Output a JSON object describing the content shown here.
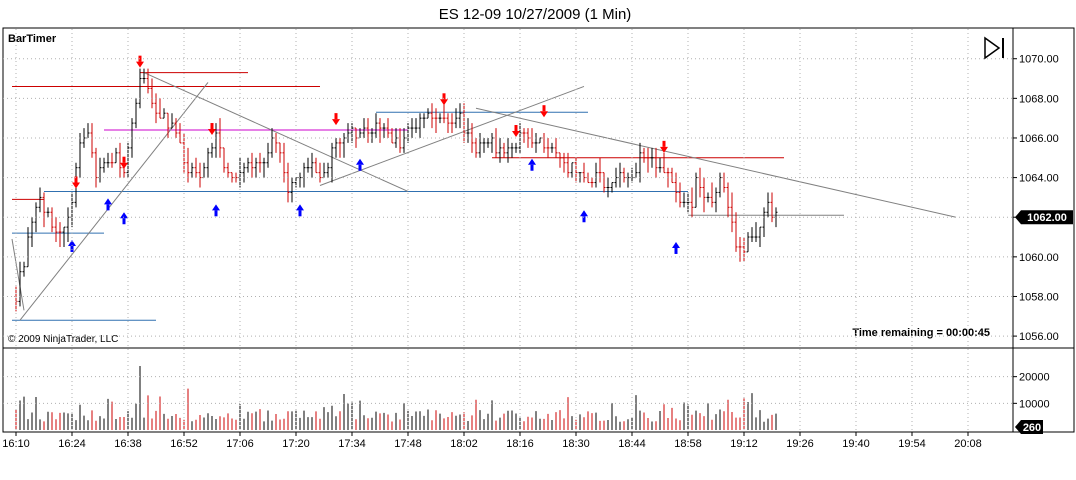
{
  "chart_title": "ES 12-09  10/27/2009 (1 Min)",
  "indicator_label": "BarTimer",
  "copyright": "© 2009 NinjaTrader, LLC",
  "time_remaining": "Time remaining = 00:00:45",
  "colors": {
    "up_bar": "#000000",
    "down_bar": "#cc0000",
    "up_arrow": "#0000ff",
    "down_arrow": "#ff0000",
    "grid": "#b0b0b0",
    "price_tag": "#000000"
  },
  "chart_data": [
    {
      "type": "candlestick",
      "title": "ES 12-09  10/27/2009 (1 Min)",
      "ylim": [
        1055.5,
        1071.5
      ],
      "y_ticks": [
        1056,
        1058,
        1060,
        1062,
        1064,
        1066,
        1068,
        1070
      ],
      "y_tick_labels": [
        "1056.00",
        "1058.00",
        "1060.00",
        "1062.00",
        "1064.00",
        "1066.00",
        "1068.00",
        "1070.00"
      ],
      "x_tick_labels": [
        "16:10",
        "16:24",
        "16:38",
        "16:52",
        "17:06",
        "17:20",
        "17:34",
        "17:48",
        "18:02",
        "18:16",
        "18:30",
        "18:44",
        "18:58",
        "19:12",
        "19:26",
        "19:40",
        "19:54",
        "20:08"
      ],
      "last_price": "1062.00",
      "grid": true,
      "anchors": [
        {
          "t": "16:10",
          "p": 1058.0
        },
        {
          "t": "16:12",
          "p": 1059.8
        },
        {
          "t": "16:14",
          "p": 1061.6
        },
        {
          "t": "16:16",
          "p": 1062.8
        },
        {
          "t": "16:18",
          "p": 1062.0
        },
        {
          "t": "16:20",
          "p": 1061.4
        },
        {
          "t": "16:22",
          "p": 1061.2
        },
        {
          "t": "16:24",
          "p": 1063.0
        },
        {
          "t": "16:26",
          "p": 1065.5
        },
        {
          "t": "16:28",
          "p": 1066.0
        },
        {
          "t": "16:30",
          "p": 1064.4
        },
        {
          "t": "16:33",
          "p": 1064.8
        },
        {
          "t": "16:35",
          "p": 1065.2
        },
        {
          "t": "16:37",
          "p": 1064.0
        },
        {
          "t": "16:39",
          "p": 1066.6
        },
        {
          "t": "16:41",
          "p": 1069.2
        },
        {
          "t": "16:43",
          "p": 1068.5
        },
        {
          "t": "16:45",
          "p": 1067.5
        },
        {
          "t": "16:47",
          "p": 1067.0
        },
        {
          "t": "16:50",
          "p": 1066.2
        },
        {
          "t": "16:53",
          "p": 1064.2
        },
        {
          "t": "16:56",
          "p": 1064.4
        },
        {
          "t": "16:58",
          "p": 1065.0
        },
        {
          "t": "17:00",
          "p": 1066.3
        },
        {
          "t": "17:03",
          "p": 1064.0
        },
        {
          "t": "17:06",
          "p": 1064.3
        },
        {
          "t": "17:09",
          "p": 1064.6
        },
        {
          "t": "17:12",
          "p": 1064.8
        },
        {
          "t": "17:14",
          "p": 1066.2
        },
        {
          "t": "17:16",
          "p": 1065.2
        },
        {
          "t": "17:18",
          "p": 1063.6
        },
        {
          "t": "17:21",
          "p": 1063.8
        },
        {
          "t": "17:23",
          "p": 1064.8
        },
        {
          "t": "17:26",
          "p": 1063.8
        },
        {
          "t": "17:28",
          "p": 1064.5
        },
        {
          "t": "17:30",
          "p": 1066.0
        },
        {
          "t": "17:32",
          "p": 1065.8
        },
        {
          "t": "17:34",
          "p": 1066.2
        },
        {
          "t": "17:36",
          "p": 1066.0
        },
        {
          "t": "17:38",
          "p": 1066.5
        },
        {
          "t": "17:40",
          "p": 1066.6
        },
        {
          "t": "17:42",
          "p": 1066.4
        },
        {
          "t": "17:44",
          "p": 1066.0
        },
        {
          "t": "17:46",
          "p": 1065.8
        },
        {
          "t": "17:48",
          "p": 1066.2
        },
        {
          "t": "17:50",
          "p": 1066.5
        },
        {
          "t": "17:52",
          "p": 1067.2
        },
        {
          "t": "17:55",
          "p": 1067.0
        },
        {
          "t": "17:58",
          "p": 1066.8
        },
        {
          "t": "18:01",
          "p": 1067.0
        },
        {
          "t": "18:03",
          "p": 1066.2
        },
        {
          "t": "18:05",
          "p": 1065.4
        },
        {
          "t": "18:07",
          "p": 1065.6
        },
        {
          "t": "18:09",
          "p": 1065.8
        },
        {
          "t": "18:11",
          "p": 1065.2
        },
        {
          "t": "18:13",
          "p": 1065.4
        },
        {
          "t": "18:15",
          "p": 1065.8
        },
        {
          "t": "18:17",
          "p": 1066.4
        },
        {
          "t": "18:19",
          "p": 1065.9
        },
        {
          "t": "18:21",
          "p": 1065.7
        },
        {
          "t": "18:23",
          "p": 1065.3
        },
        {
          "t": "18:25",
          "p": 1065.2
        },
        {
          "t": "18:27",
          "p": 1064.6
        },
        {
          "t": "18:29",
          "p": 1064.6
        },
        {
          "t": "18:31",
          "p": 1064.0
        },
        {
          "t": "18:33",
          "p": 1063.6
        },
        {
          "t": "18:35",
          "p": 1064.2
        },
        {
          "t": "18:37",
          "p": 1063.6
        },
        {
          "t": "18:39",
          "p": 1063.8
        },
        {
          "t": "18:41",
          "p": 1064.1
        },
        {
          "t": "18:43",
          "p": 1064.2
        },
        {
          "t": "18:45",
          "p": 1064.6
        },
        {
          "t": "18:47",
          "p": 1065.2
        },
        {
          "t": "18:49",
          "p": 1064.9
        },
        {
          "t": "18:51",
          "p": 1064.6
        },
        {
          "t": "18:53",
          "p": 1064.1
        },
        {
          "t": "18:55",
          "p": 1063.6
        },
        {
          "t": "18:57",
          "p": 1062.6
        },
        {
          "t": "18:59",
          "p": 1062.8
        },
        {
          "t": "19:00",
          "p": 1064.3
        },
        {
          "t": "19:02",
          "p": 1063.0
        },
        {
          "t": "19:04",
          "p": 1062.7
        },
        {
          "t": "19:06",
          "p": 1063.9
        },
        {
          "t": "19:08",
          "p": 1062.6
        },
        {
          "t": "19:10",
          "p": 1060.8
        },
        {
          "t": "19:12",
          "p": 1060.6
        },
        {
          "t": "19:14",
          "p": 1061.1
        },
        {
          "t": "19:16",
          "p": 1061.6
        },
        {
          "t": "19:18",
          "p": 1062.6
        },
        {
          "t": "19:20",
          "p": 1062.1
        }
      ],
      "horizontal_levels": [
        {
          "price": 1069.3,
          "from": "16:41",
          "to": "17:08",
          "color": "#cc0000"
        },
        {
          "price": 1068.6,
          "from": "16:09",
          "to": "17:26",
          "color": "#cc0000"
        },
        {
          "price": 1066.4,
          "from": "16:32",
          "to": "17:48",
          "color": "#cc00cc"
        },
        {
          "price": 1067.3,
          "from": "17:40",
          "to": "18:33",
          "color": "#3070b0"
        },
        {
          "price": 1065.0,
          "from": "18:09",
          "to": "19:22",
          "color": "#cc0000"
        },
        {
          "price": 1063.3,
          "from": "16:17",
          "to": "18:58",
          "color": "#3070b0"
        },
        {
          "price": 1062.9,
          "from": "16:09",
          "to": "16:17",
          "color": "#cc0000"
        },
        {
          "price": 1061.2,
          "from": "16:09",
          "to": "16:32",
          "color": "#3070b0"
        },
        {
          "price": 1062.1,
          "from": "18:58",
          "to": "19:37",
          "color": "#808080"
        },
        {
          "price": 1056.8,
          "from": "16:09",
          "to": "16:45",
          "color": "#3070b0"
        }
      ],
      "trendlines": [
        {
          "from": {
            "t": "16:11",
            "p": 1056.8
          },
          "to": {
            "t": "16:58",
            "p": 1068.8
          },
          "color": "#808080"
        },
        {
          "from": {
            "t": "16:42",
            "p": 1069.3
          },
          "to": {
            "t": "17:48",
            "p": 1063.3
          },
          "color": "#808080"
        },
        {
          "from": {
            "t": "17:26",
            "p": 1063.6
          },
          "to": {
            "t": "18:32",
            "p": 1068.6
          },
          "color": "#808080"
        },
        {
          "from": {
            "t": "18:05",
            "p": 1067.5
          },
          "to": {
            "t": "20:05",
            "p": 1062.0
          },
          "color": "#808080"
        },
        {
          "from": {
            "t": "16:09",
            "p": 1060.9
          },
          "to": {
            "t": "16:12",
            "p": 1057.3
          },
          "color": "#808080"
        }
      ],
      "signals": [
        {
          "t": "16:25",
          "p": 1063.6,
          "dir": "down"
        },
        {
          "t": "16:37",
          "p": 1064.6,
          "dir": "down"
        },
        {
          "t": "16:41",
          "p": 1069.7,
          "dir": "down"
        },
        {
          "t": "16:59",
          "p": 1066.3,
          "dir": "down"
        },
        {
          "t": "17:30",
          "p": 1066.8,
          "dir": "down"
        },
        {
          "t": "17:57",
          "p": 1067.8,
          "dir": "down"
        },
        {
          "t": "18:15",
          "p": 1066.2,
          "dir": "down"
        },
        {
          "t": "18:22",
          "p": 1067.2,
          "dir": "down"
        },
        {
          "t": "18:52",
          "p": 1065.4,
          "dir": "down"
        },
        {
          "t": "16:24",
          "p": 1060.7,
          "dir": "up"
        },
        {
          "t": "16:33",
          "p": 1062.8,
          "dir": "up"
        },
        {
          "t": "16:37",
          "p": 1062.1,
          "dir": "up"
        },
        {
          "t": "17:00",
          "p": 1062.5,
          "dir": "up"
        },
        {
          "t": "17:21",
          "p": 1062.5,
          "dir": "up"
        },
        {
          "t": "17:36",
          "p": 1064.8,
          "dir": "up"
        },
        {
          "t": "18:19",
          "p": 1064.8,
          "dir": "up"
        },
        {
          "t": "18:32",
          "p": 1062.2,
          "dir": "up"
        },
        {
          "t": "18:55",
          "p": 1060.6,
          "dir": "up"
        }
      ]
    },
    {
      "type": "bar",
      "title": "",
      "ylim": [
        0,
        30000
      ],
      "y_ticks": [
        10000,
        20000
      ],
      "y_tick_labels": [
        "10000",
        "20000"
      ],
      "last_value": "260"
    }
  ]
}
